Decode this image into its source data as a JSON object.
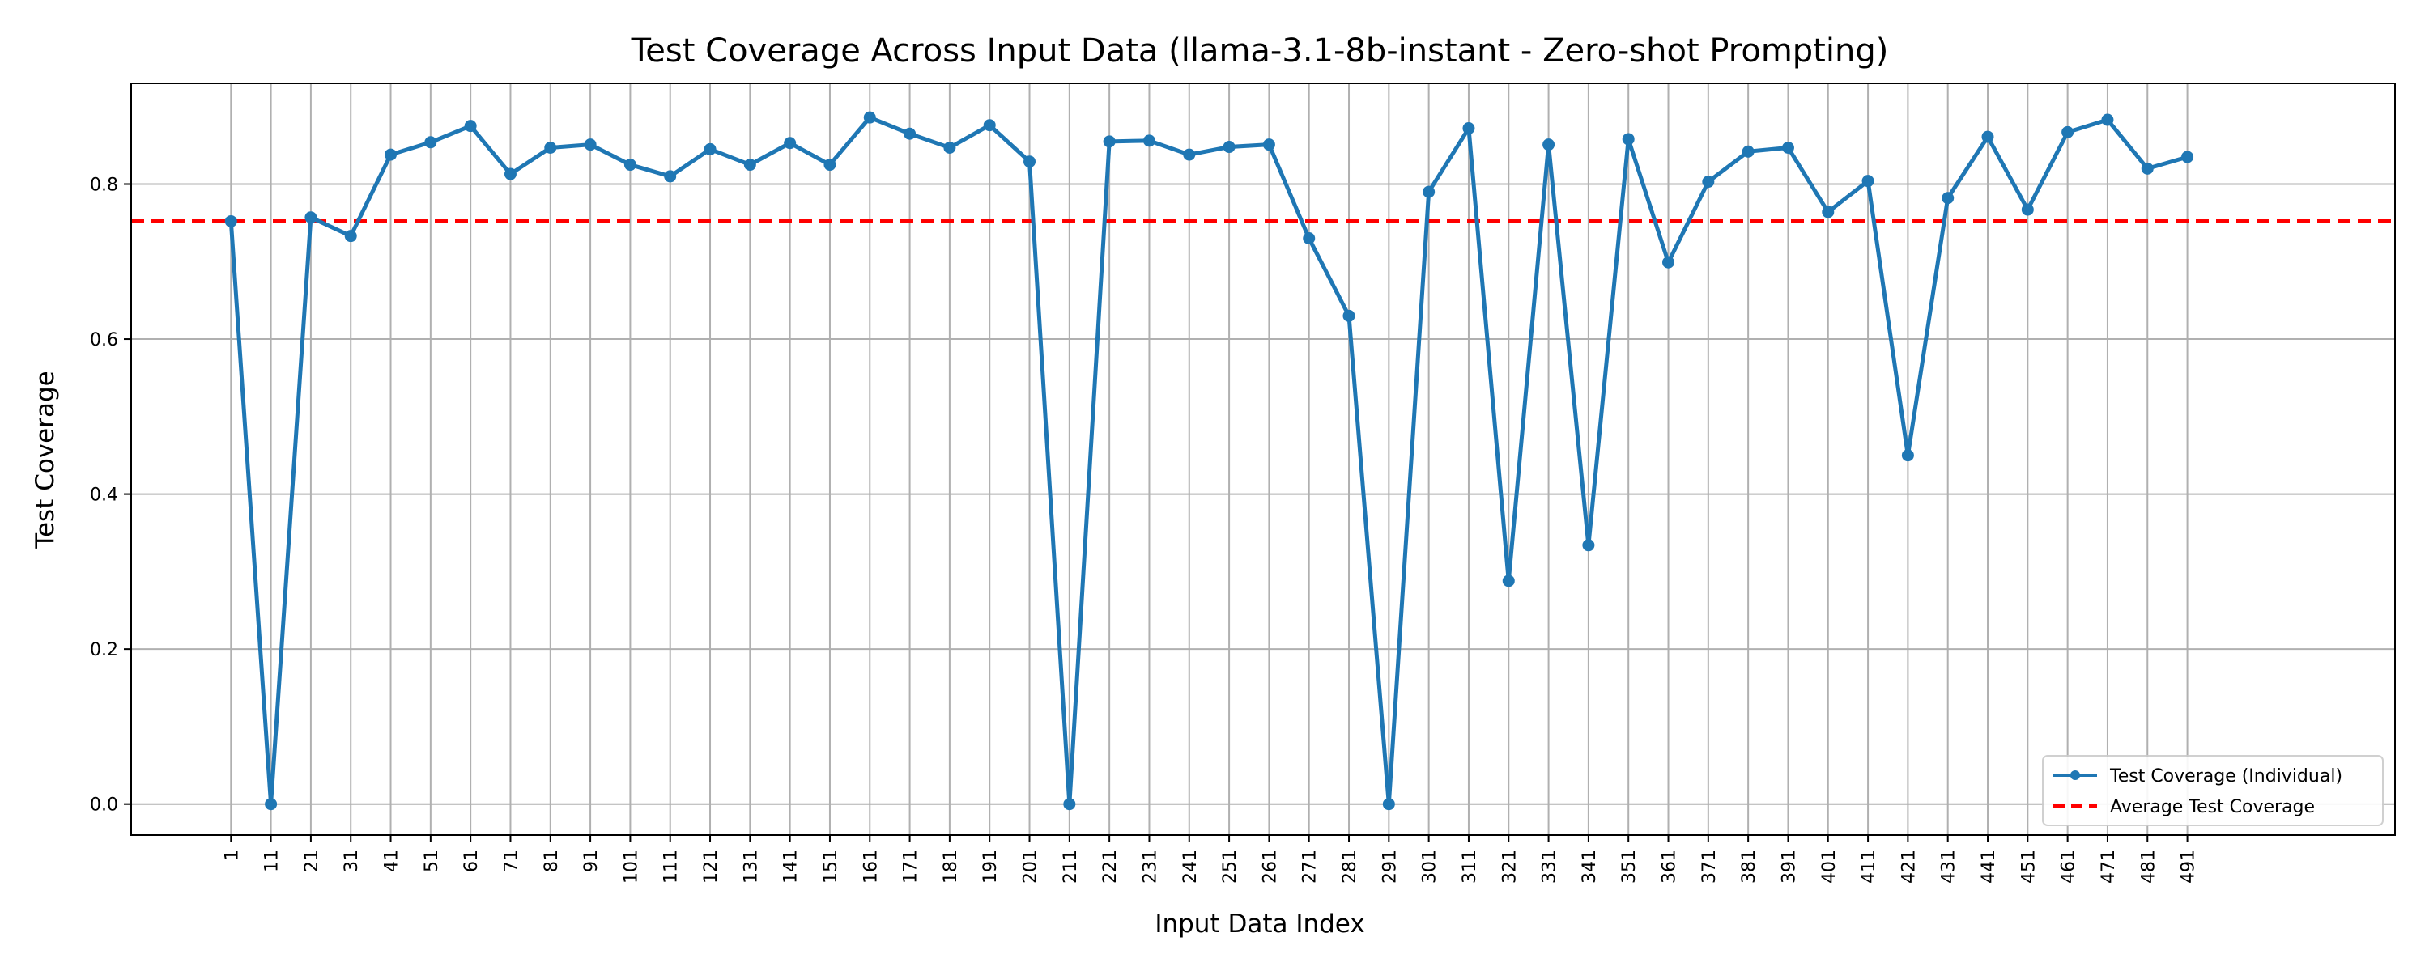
{
  "chart_data": {
    "type": "line",
    "title": "Test Coverage Across Input Data (llama-3.1-8b-instant - Zero-shot Prompting)",
    "xlabel": "Input Data Index",
    "ylabel": "Test Coverage",
    "x_ticks": [
      "1",
      "11",
      "21",
      "31",
      "41",
      "51",
      "61",
      "71",
      "81",
      "91",
      "101",
      "111",
      "121",
      "131",
      "141",
      "151",
      "161",
      "171",
      "181",
      "191",
      "201",
      "211",
      "221",
      "231",
      "241",
      "251",
      "261",
      "271",
      "281",
      "291",
      "301",
      "311",
      "321",
      "331",
      "341",
      "351",
      "361",
      "371",
      "381",
      "391",
      "401",
      "411",
      "421",
      "431",
      "441",
      "451",
      "461",
      "471",
      "481",
      "491"
    ],
    "y_ticks": [
      "0.0",
      "0.2",
      "0.4",
      "0.6",
      "0.8"
    ],
    "ylim": [
      -0.04,
      0.93
    ],
    "xlim": [
      -24,
      543
    ],
    "grid": true,
    "legend_position": "lower-right",
    "series": [
      {
        "name": "Test Coverage (Individual)",
        "color": "#1f77b4",
        "style": "solid-with-markers",
        "x": [
          1,
          11,
          21,
          31,
          41,
          51,
          61,
          71,
          81,
          91,
          101,
          111,
          121,
          131,
          141,
          151,
          161,
          171,
          181,
          191,
          201,
          211,
          221,
          231,
          241,
          251,
          261,
          271,
          281,
          291,
          301,
          311,
          321,
          331,
          341,
          351,
          361,
          371,
          381,
          391,
          401,
          411,
          421,
          431,
          441,
          451,
          461,
          471,
          481,
          491
        ],
        "values": [
          0.752,
          0.0,
          0.757,
          0.733,
          0.838,
          0.854,
          0.875,
          0.813,
          0.847,
          0.851,
          0.825,
          0.81,
          0.845,
          0.825,
          0.853,
          0.825,
          0.886,
          0.865,
          0.847,
          0.876,
          0.829,
          0.0,
          0.855,
          0.856,
          0.838,
          0.848,
          0.851,
          0.73,
          0.63,
          0.0,
          0.79,
          0.872,
          0.288,
          0.851,
          0.334,
          0.858,
          0.699,
          0.803,
          0.842,
          0.847,
          0.764,
          0.804,
          0.45,
          0.782,
          0.861,
          0.767,
          0.867,
          0.883,
          0.82,
          0.835
        ]
      },
      {
        "name": "Average Test Coverage",
        "color": "#ff0000",
        "style": "dashed-horizontal",
        "value": 0.752
      }
    ]
  }
}
